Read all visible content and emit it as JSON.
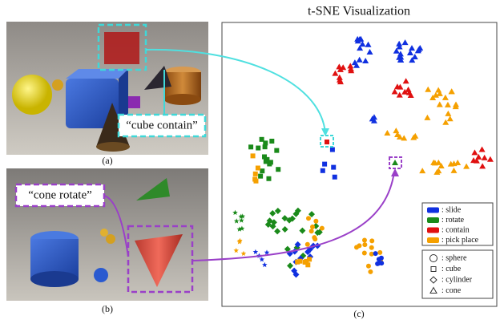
{
  "panel_a": {
    "caption": "(a)",
    "callout": "“cube contain”"
  },
  "panel_b": {
    "caption": "(b)",
    "callout": "“cone rotate”"
  },
  "panel_c": {
    "caption": "(c)",
    "title": "t-SNE Visualization",
    "action_legend": [
      ": slide",
      ": rotate",
      ": contain",
      ": pick place"
    ],
    "shape_legend": [
      ": sphere",
      ": cube",
      ": cylinder",
      ": cone"
    ]
  }
}
